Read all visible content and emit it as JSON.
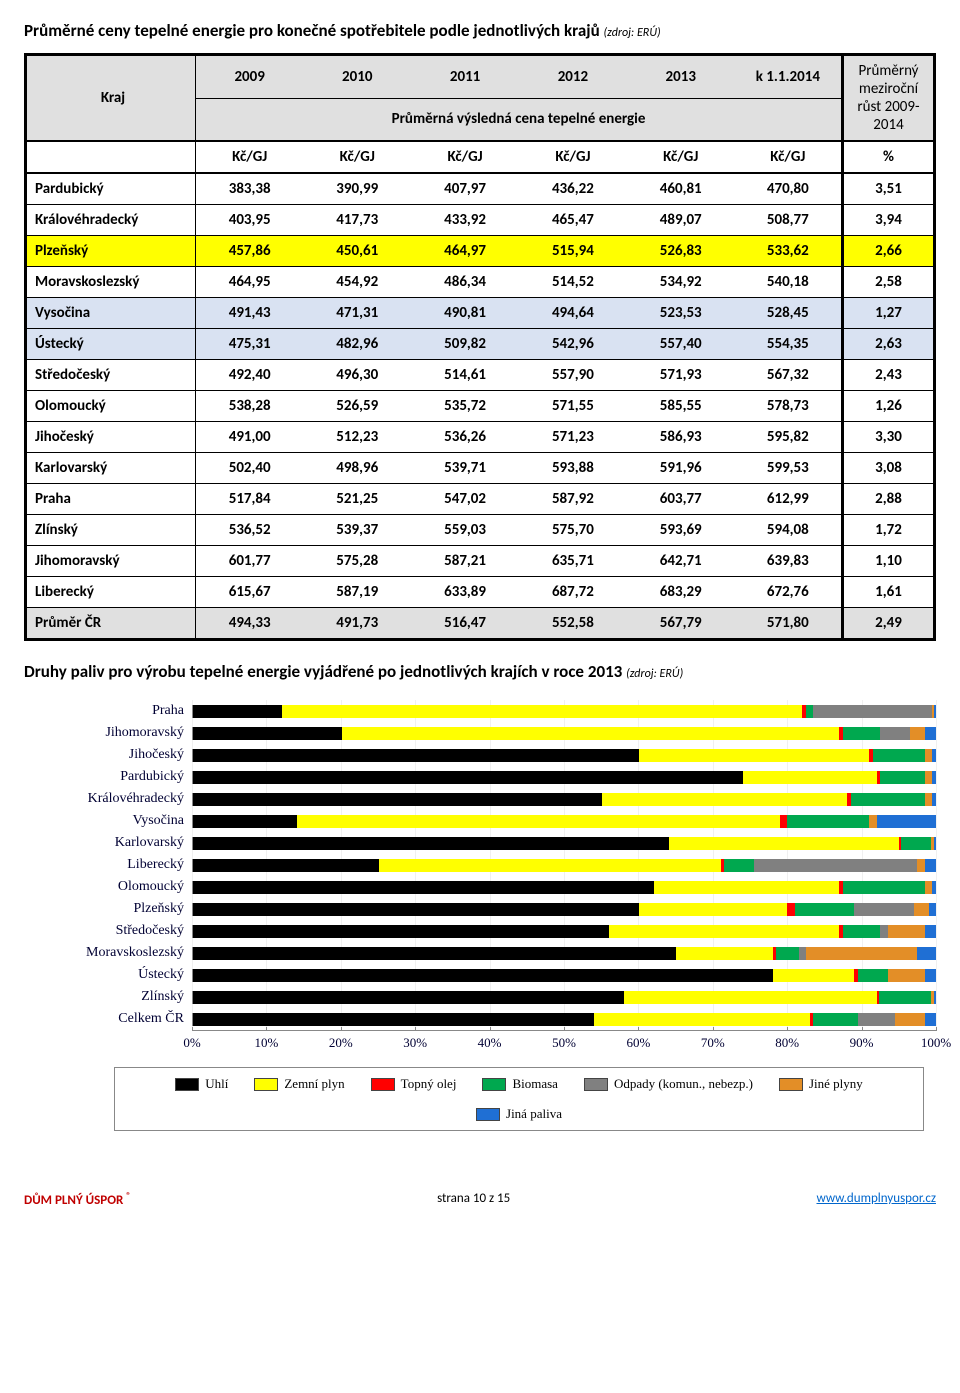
{
  "title_main": "Průměrné ceny tepelné energie pro konečné spotřebitele podle jednotlivých krajů ",
  "title_source": "(zdroj: ERÚ)",
  "header_years": [
    "2009",
    "2010",
    "2011",
    "2012",
    "2013",
    "k 1.1.2014"
  ],
  "header_kraj": "Kraj",
  "header_sub": "Průměrná výsledná cena tepelné energie",
  "header_avg1": "Průměrný meziroční růst 2009-2014",
  "unit": "Kč/GJ",
  "unit_pct": "%",
  "row_colors": {
    "default_bg": "#ffffff",
    "highlight_yellow": "#ffff00",
    "highlight_blue": "#d9e2f2",
    "header_grey": "#e0e0e0"
  },
  "rows": [
    {
      "name": "Pardubický",
      "v": [
        "383,38",
        "390,99",
        "407,97",
        "436,22",
        "460,81",
        "470,80",
        "3,51"
      ],
      "hl": ""
    },
    {
      "name": "Královéhradecký",
      "v": [
        "403,95",
        "417,73",
        "433,92",
        "465,47",
        "489,07",
        "508,77",
        "3,94"
      ],
      "hl": ""
    },
    {
      "name": "Plzeňský",
      "v": [
        "457,86",
        "450,61",
        "464,97",
        "515,94",
        "526,83",
        "533,62",
        "2,66"
      ],
      "hl": "yellow"
    },
    {
      "name": "Moravskoslezský",
      "v": [
        "464,95",
        "454,92",
        "486,34",
        "514,52",
        "534,92",
        "540,18",
        "2,58"
      ],
      "hl": ""
    },
    {
      "name": "Vysočina",
      "v": [
        "491,43",
        "471,31",
        "490,81",
        "494,64",
        "523,53",
        "528,45",
        "1,27"
      ],
      "hl": "blue"
    },
    {
      "name": "Ústecký",
      "v": [
        "475,31",
        "482,96",
        "509,82",
        "542,96",
        "557,40",
        "554,35",
        "2,63"
      ],
      "hl": "blue"
    },
    {
      "name": "Středočeský",
      "v": [
        "492,40",
        "496,30",
        "514,61",
        "557,90",
        "571,93",
        "567,32",
        "2,43"
      ],
      "hl": ""
    },
    {
      "name": "Olomoucký",
      "v": [
        "538,28",
        "526,59",
        "535,72",
        "571,55",
        "585,55",
        "578,73",
        "1,26"
      ],
      "hl": ""
    },
    {
      "name": "Jihočeský",
      "v": [
        "491,00",
        "512,23",
        "536,26",
        "571,23",
        "586,93",
        "595,82",
        "3,30"
      ],
      "hl": ""
    },
    {
      "name": "Karlovarský",
      "v": [
        "502,40",
        "498,96",
        "539,71",
        "593,88",
        "591,96",
        "599,53",
        "3,08"
      ],
      "hl": ""
    },
    {
      "name": "Praha",
      "v": [
        "517,84",
        "521,25",
        "547,02",
        "587,92",
        "603,77",
        "612,99",
        "2,88"
      ],
      "hl": ""
    },
    {
      "name": "Zlínský",
      "v": [
        "536,52",
        "539,37",
        "559,03",
        "575,70",
        "593,69",
        "594,08",
        "1,72"
      ],
      "hl": ""
    },
    {
      "name": "Jihomoravský",
      "v": [
        "601,77",
        "575,28",
        "587,21",
        "635,71",
        "642,71",
        "639,83",
        "1,10"
      ],
      "hl": ""
    },
    {
      "name": "Liberecký",
      "v": [
        "615,67",
        "587,19",
        "633,89",
        "687,72",
        "683,29",
        "672,76",
        "1,61"
      ],
      "hl": ""
    },
    {
      "name": "Průměr ČR",
      "v": [
        "494,33",
        "491,73",
        "516,47",
        "552,58",
        "567,79",
        "571,80",
        "2,49"
      ],
      "hl": "grey"
    }
  ],
  "subtitle2_main": "Druhy paliv pro výrobu tepelné energie vyjádřené po jednotlivých krajích v roce 2013 ",
  "subtitle2_source": "(zdroj: ERÚ)",
  "chart": {
    "xmin": 0,
    "xmax": 100,
    "xtick_step": 10,
    "xtick_labels": [
      "0%",
      "10%",
      "20%",
      "30%",
      "40%",
      "50%",
      "60%",
      "70%",
      "80%",
      "90%",
      "100%"
    ],
    "series_colors": {
      "uhli": "#000000",
      "plyn": "#ffff00",
      "olej": "#ff0000",
      "biomasa": "#00a84f",
      "odpady": "#808080",
      "jine_plyny": "#e38e27",
      "jina_paliva": "#1f6fd4"
    },
    "legend": [
      {
        "key": "uhli",
        "label": "Uhlí"
      },
      {
        "key": "plyn",
        "label": "Zemní plyn"
      },
      {
        "key": "olej",
        "label": "Topný olej"
      },
      {
        "key": "biomasa",
        "label": "Biomasa"
      },
      {
        "key": "odpady",
        "label": "Odpady (komun., nebezp.)"
      },
      {
        "key": "jine_plyny",
        "label": "Jiné plyny"
      },
      {
        "key": "jina_paliva",
        "label": "Jiná paliva"
      }
    ],
    "rows": [
      {
        "name": "Praha",
        "seg": {
          "uhli": 12,
          "plyn": 70,
          "olej": 0.5,
          "biomasa": 1,
          "odpady": 16,
          "jine_plyny": 0.3,
          "jina_paliva": 0.2
        }
      },
      {
        "name": "Jihomoravský",
        "seg": {
          "uhli": 20,
          "plyn": 67,
          "olej": 0.5,
          "biomasa": 5,
          "odpady": 4,
          "jine_plyny": 2,
          "jina_paliva": 1.5
        }
      },
      {
        "name": "Jihočeský",
        "seg": {
          "uhli": 60,
          "plyn": 31,
          "olej": 0.5,
          "biomasa": 7,
          "odpady": 0,
          "jine_plyny": 1,
          "jina_paliva": 0.5
        }
      },
      {
        "name": "Pardubický",
        "seg": {
          "uhli": 74,
          "plyn": 18,
          "olej": 0.5,
          "biomasa": 6,
          "odpady": 0,
          "jine_plyny": 1,
          "jina_paliva": 0.5
        }
      },
      {
        "name": "Královéhradecký",
        "seg": {
          "uhli": 55,
          "plyn": 33,
          "olej": 0.5,
          "biomasa": 10,
          "odpady": 0,
          "jine_plyny": 1,
          "jina_paliva": 0.5
        }
      },
      {
        "name": "Vysočina",
        "seg": {
          "uhli": 14,
          "plyn": 65,
          "olej": 1,
          "biomasa": 11,
          "odpady": 0,
          "jine_plyny": 1,
          "jina_paliva": 8
        }
      },
      {
        "name": "Karlovarský",
        "seg": {
          "uhli": 64,
          "plyn": 31,
          "olej": 0.3,
          "biomasa": 4,
          "odpady": 0,
          "jine_plyny": 0.5,
          "jina_paliva": 0.2
        }
      },
      {
        "name": "Liberecký",
        "seg": {
          "uhli": 25,
          "plyn": 46,
          "olej": 0.5,
          "biomasa": 4,
          "odpady": 22,
          "jine_plyny": 1,
          "jina_paliva": 1.5
        }
      },
      {
        "name": "Olomoucký",
        "seg": {
          "uhli": 62,
          "plyn": 25,
          "olej": 0.5,
          "biomasa": 11,
          "odpady": 0,
          "jine_plyny": 1,
          "jina_paliva": 0.5
        }
      },
      {
        "name": "Plzeňský",
        "seg": {
          "uhli": 60,
          "plyn": 20,
          "olej": 1,
          "biomasa": 8,
          "odpady": 8,
          "jine_plyny": 2,
          "jina_paliva": 1
        }
      },
      {
        "name": "Středočeský",
        "seg": {
          "uhli": 56,
          "plyn": 31,
          "olej": 0.5,
          "biomasa": 5,
          "odpady": 1,
          "jine_plyny": 5,
          "jina_paliva": 1.5
        }
      },
      {
        "name": "Moravskoslezský",
        "seg": {
          "uhli": 65,
          "plyn": 13,
          "olej": 0.5,
          "biomasa": 3,
          "odpady": 1,
          "jine_plyny": 15,
          "jina_paliva": 2.5
        }
      },
      {
        "name": "Ústecký",
        "seg": {
          "uhli": 78,
          "plyn": 11,
          "olej": 0.5,
          "biomasa": 4,
          "odpady": 0,
          "jine_plyny": 5,
          "jina_paliva": 1.5
        }
      },
      {
        "name": "Zlínský",
        "seg": {
          "uhli": 58,
          "plyn": 34,
          "olej": 0.3,
          "biomasa": 7,
          "odpady": 0,
          "jine_plyny": 0.5,
          "jina_paliva": 0.2
        }
      },
      {
        "name": "Celkem ČR",
        "seg": {
          "uhli": 54,
          "plyn": 29,
          "olej": 0.5,
          "biomasa": 6,
          "odpady": 5,
          "jine_plyny": 4,
          "jina_paliva": 1.5
        }
      }
    ]
  },
  "footer_brand": "DŮM PLNÝ ÚSPOR ",
  "footer_reg": "®",
  "footer_page": "strana 10 z 15",
  "footer_link": "www.dumplnyuspor.cz"
}
